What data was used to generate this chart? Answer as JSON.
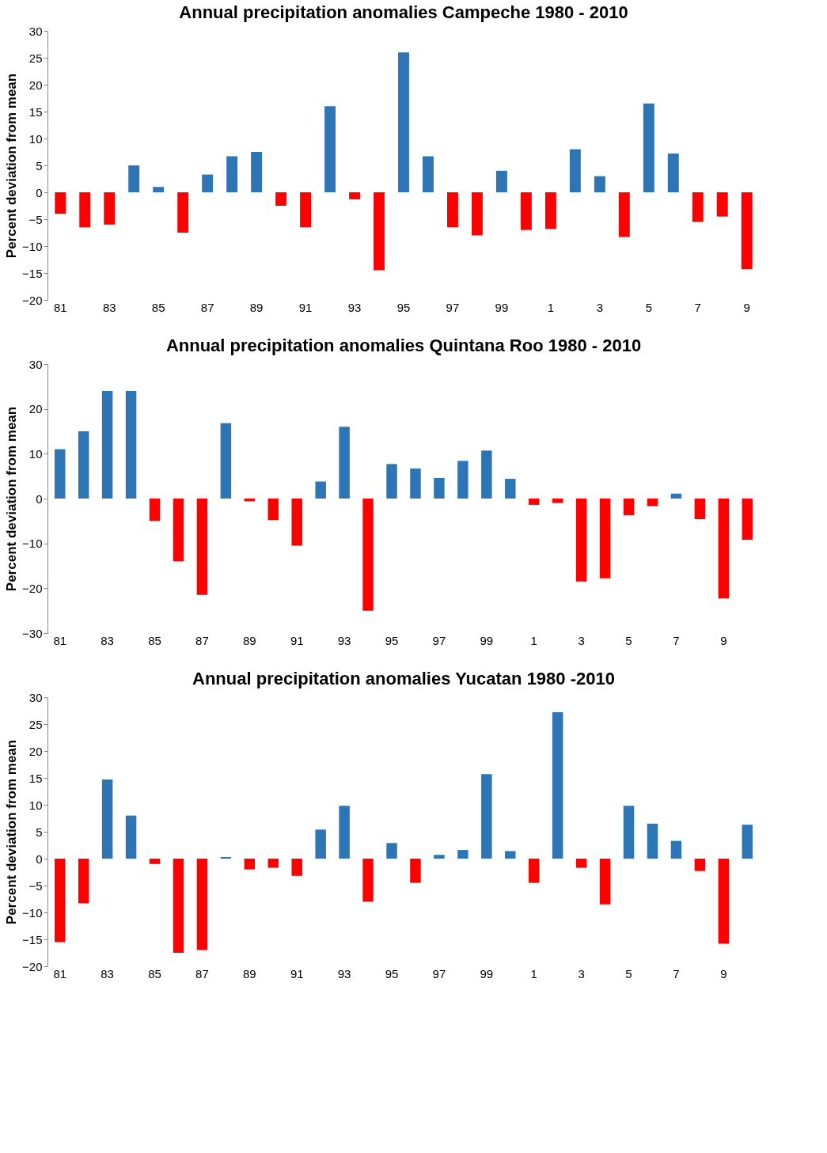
{
  "chart_data": [
    {
      "type": "bar",
      "title": "Annual precipitation anomalies Campeche 1980 - 2010",
      "ylabel": "Percent deviation from mean",
      "categories": [
        "81",
        null,
        "83",
        null,
        "85",
        null,
        "87",
        null,
        "89",
        null,
        "91",
        null,
        "93",
        null,
        "95",
        null,
        "97",
        null,
        "99",
        null,
        "1",
        null,
        "3",
        null,
        "5",
        null,
        "7",
        null,
        "9"
      ],
      "values": [
        -4,
        -6.5,
        -6,
        5,
        1,
        -7.5,
        3.3,
        6.7,
        7.5,
        -2.5,
        -6.5,
        16,
        -1.3,
        -14.5,
        26,
        6.7,
        -6.5,
        -8,
        4,
        -7,
        -6.8,
        8,
        3,
        -8.3,
        16.5,
        7.2,
        -5.5,
        -4.5,
        -14.3
      ],
      "colors": [
        "#ff0000",
        "#ff0000",
        "#ff0000",
        "#2e75b6",
        "#2e75b6",
        "#ff0000",
        "#2e75b6",
        "#2e75b6",
        "#2e75b6",
        "#ff0000",
        "#ff0000",
        "#2e75b6",
        "#ff0000",
        "#ff0000",
        "#2e75b6",
        "#2e75b6",
        "#ff0000",
        "#ff0000",
        "#2e75b6",
        "#ff0000",
        "#ff0000",
        "#2e75b6",
        "#2e75b6",
        "#ff0000",
        "#2e75b6",
        "#2e75b6",
        "#ff0000",
        "#ff0000",
        "#ff0000"
      ],
      "ylim": [
        -20,
        30
      ],
      "yticks": [
        -20,
        -15,
        -10,
        -5,
        0,
        5,
        10,
        15,
        20,
        25,
        30
      ]
    },
    {
      "type": "bar",
      "title": "Annual precipitation anomalies Quintana Roo 1980 - 2010",
      "ylabel": "Percent deviation from mean",
      "categories": [
        "81",
        null,
        "83",
        null,
        "85",
        null,
        "87",
        null,
        "89",
        null,
        "91",
        null,
        "93",
        null,
        "95",
        null,
        "97",
        null,
        "99",
        null,
        "1",
        null,
        "3",
        null,
        "5",
        null,
        "7",
        null,
        "9",
        null
      ],
      "values": [
        11,
        15,
        24,
        24,
        -5,
        -14,
        -21.5,
        16.8,
        -0.6,
        -4.8,
        -10.5,
        3.8,
        16,
        -25,
        7.7,
        6.7,
        4.6,
        8.4,
        10.7,
        4.4,
        -1.4,
        -1,
        -18.5,
        -17.8,
        -3.7,
        -1.7,
        1.1,
        -4.6,
        -22.3,
        -9.2
      ],
      "colors": [
        "#2e75b6",
        "#2e75b6",
        "#2e75b6",
        "#2e75b6",
        "#ff0000",
        "#ff0000",
        "#ff0000",
        "#2e75b6",
        "#ff0000",
        "#ff0000",
        "#ff0000",
        "#2e75b6",
        "#2e75b6",
        "#ff0000",
        "#2e75b6",
        "#2e75b6",
        "#2e75b6",
        "#2e75b6",
        "#2e75b6",
        "#2e75b6",
        "#ff0000",
        "#ff0000",
        "#ff0000",
        "#ff0000",
        "#ff0000",
        "#ff0000",
        "#2e75b6",
        "#ff0000",
        "#ff0000",
        "#ff0000"
      ],
      "ylim": [
        -30,
        30
      ],
      "yticks": [
        -30,
        -20,
        -10,
        0,
        10,
        20,
        30
      ]
    },
    {
      "type": "bar",
      "title": "Annual precipitation anomalies Yucatan 1980 -2010",
      "ylabel": "Percent deviation from mean",
      "categories": [
        "81",
        null,
        "83",
        null,
        "85",
        null,
        "87",
        null,
        "89",
        null,
        "91",
        null,
        "93",
        null,
        "95",
        null,
        "97",
        null,
        "99",
        null,
        "1",
        null,
        "3",
        null,
        "5",
        null,
        "7",
        null,
        "9",
        null
      ],
      "values": [
        -15.5,
        -8.3,
        14.7,
        8,
        -1,
        -17.5,
        -17,
        0.3,
        -2,
        -1.7,
        -3.2,
        5.4,
        9.8,
        -8,
        2.9,
        -4.5,
        0.7,
        1.6,
        15.7,
        1.4,
        -4.5,
        27.2,
        -1.7,
        -8.5,
        9.8,
        6.5,
        3.3,
        -2.3,
        -15.8,
        6.3
      ],
      "colors": [
        "#ff0000",
        "#ff0000",
        "#2e75b6",
        "#2e75b6",
        "#ff0000",
        "#ff0000",
        "#ff0000",
        "#2e75b6",
        "#ff0000",
        "#ff0000",
        "#ff0000",
        "#2e75b6",
        "#2e75b6",
        "#ff0000",
        "#2e75b6",
        "#ff0000",
        "#2e75b6",
        "#2e75b6",
        "#2e75b6",
        "#2e75b6",
        "#ff0000",
        "#2e75b6",
        "#ff0000",
        "#ff0000",
        "#2e75b6",
        "#2e75b6",
        "#2e75b6",
        "#ff0000",
        "#ff0000",
        "#2e75b6"
      ],
      "ylim": [
        -20,
        30
      ],
      "yticks": [
        -20,
        -15,
        -10,
        -5,
        0,
        5,
        10,
        15,
        20,
        25,
        30
      ]
    }
  ]
}
